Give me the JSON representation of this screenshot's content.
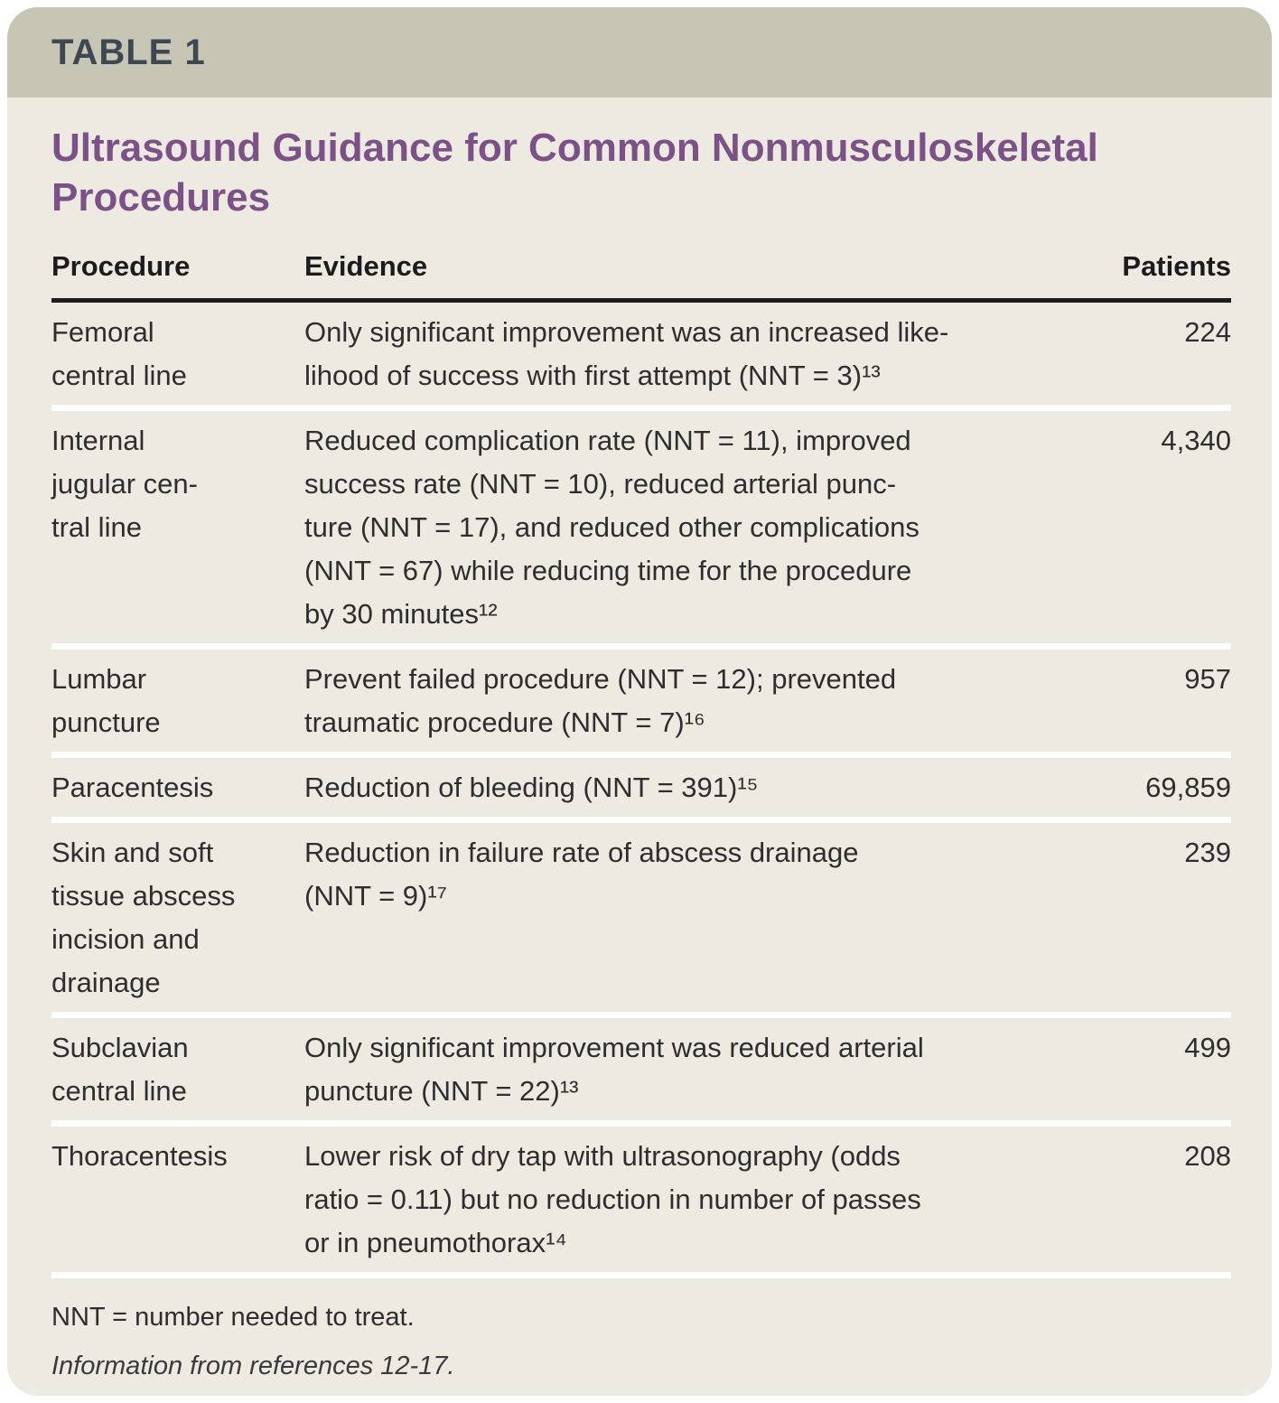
{
  "card": {
    "tag": "TABLE 1",
    "title": "Ultrasound Guidance for Common Nonmusculoskeletal\nProcedures"
  },
  "table": {
    "columns": {
      "procedure": "Procedure",
      "evidence": "Evidence",
      "patients": "Patients"
    },
    "rows": [
      {
        "procedure": "Femoral\ncentral line",
        "evidence": "Only significant improvement was an increased like-\nlihood of success with first attempt (NNT = 3)¹³",
        "patients": "224"
      },
      {
        "procedure": "Internal\njugular cen-\ntral line",
        "evidence": "Reduced complication rate (NNT = 11), improved\nsuccess rate (NNT = 10), reduced arterial punc-\nture (NNT = 17), and reduced other complications\n(NNT = 67) while reducing time for the procedure\nby 30 minutes¹²",
        "patients": "4,340"
      },
      {
        "procedure": "Lumbar\npuncture",
        "evidence": "Prevent failed procedure (NNT = 12); prevented\ntraumatic procedure (NNT = 7)¹⁶",
        "patients": "957"
      },
      {
        "procedure": "Paracentesis",
        "evidence": "Reduction of bleeding (NNT = 391)¹⁵",
        "patients": "69,859"
      },
      {
        "procedure": "Skin and soft\ntissue abscess\nincision and\ndrainage",
        "evidence": "Reduction in failure rate of abscess drainage\n(NNT = 9)¹⁷",
        "patients": "239"
      },
      {
        "procedure": "Subclavian\ncentral line",
        "evidence": "Only significant improvement was reduced arterial\npuncture (NNT = 22)¹³",
        "patients": "499"
      },
      {
        "procedure": "Thoracentesis",
        "evidence": "Lower risk of dry tap with ultrasonography (odds\nratio = 0.11) but no reduction in number of passes\nor in pneumothorax¹⁴",
        "patients": "208"
      }
    ]
  },
  "footnotes": {
    "abbreviation": "NNT = number needed to treat.",
    "source": "Information from references 12-17."
  },
  "colors": {
    "header_bar": "#C7C5B3",
    "card_body": "#ECEAE1",
    "title_purple": "#7B5187",
    "tag_slate": "#3E4853",
    "rule_black": "#1D1D1D",
    "separator_white": "#FFFFFF"
  }
}
